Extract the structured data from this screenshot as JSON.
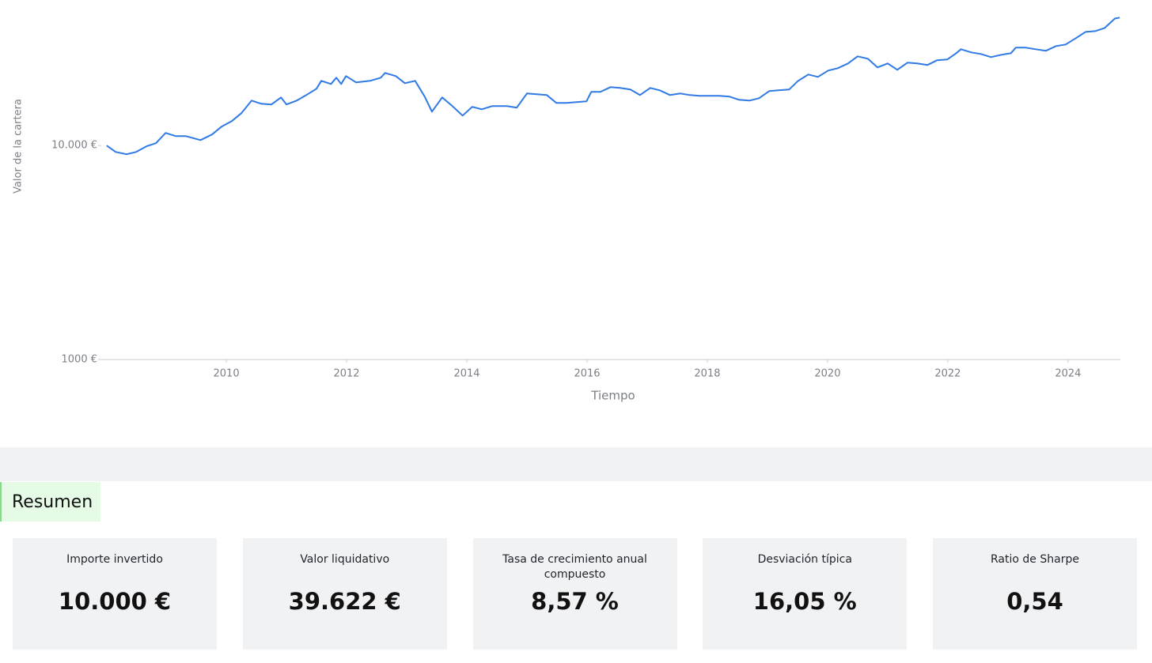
{
  "chart_data": {
    "type": "line",
    "y_label": "Valor de la cartera",
    "x_label": "Tiempo",
    "color": "#2f7ae5",
    "log_y": true,
    "xlim": [
      2007.92,
      2024.87
    ],
    "xticks": [
      2010,
      2012,
      2014,
      2016,
      2018,
      2020,
      2022,
      2024
    ],
    "ylim": [
      1000,
      44000
    ],
    "yticks": [
      {
        "value": 1000,
        "label": "1000 €"
      },
      {
        "value": 10000,
        "label": "10.000 €"
      }
    ],
    "x": [
      2008.01,
      2008.16,
      2008.34,
      2008.5,
      2008.67,
      2008.83,
      2008.99,
      2009.16,
      2009.33,
      2009.57,
      2009.76,
      2009.92,
      2010.09,
      2010.25,
      2010.42,
      2010.58,
      2010.75,
      2010.91,
      2011.0,
      2011.17,
      2011.33,
      2011.5,
      2011.58,
      2011.74,
      2011.83,
      2011.91,
      2011.99,
      2012.16,
      2012.39,
      2012.57,
      2012.64,
      2012.82,
      2012.97,
      2013.14,
      2013.3,
      2013.42,
      2013.59,
      2013.76,
      2013.93,
      2014.09,
      2014.25,
      2014.42,
      2014.67,
      2014.83,
      2015.0,
      2015.16,
      2015.33,
      2015.49,
      2015.66,
      2015.82,
      2015.99,
      2016.07,
      2016.22,
      2016.39,
      2016.55,
      2016.72,
      2016.88,
      2017.05,
      2017.21,
      2017.38,
      2017.55,
      2017.71,
      2017.87,
      2018.04,
      2018.2,
      2018.37,
      2018.53,
      2018.7,
      2018.86,
      2019.03,
      2019.18,
      2019.36,
      2019.51,
      2019.68,
      2019.84,
      2020.01,
      2020.17,
      2020.34,
      2020.5,
      2020.67,
      2020.83,
      2021.0,
      2021.16,
      2021.33,
      2021.49,
      2021.66,
      2021.82,
      2021.99,
      2022.14,
      2022.22,
      2022.39,
      2022.55,
      2022.72,
      2022.89,
      2023.05,
      2023.13,
      2023.3,
      2023.46,
      2023.63,
      2023.8,
      2023.96,
      2024.13,
      2024.29,
      2024.45,
      2024.61,
      2024.78,
      2024.86
    ],
    "values": [
      10000,
      9340,
      9110,
      9340,
      9920,
      10260,
      11460,
      11070,
      11070,
      10610,
      11260,
      12260,
      13010,
      14170,
      16230,
      15690,
      15560,
      16790,
      15560,
      16230,
      17220,
      18440,
      20070,
      19400,
      20770,
      19400,
      21120,
      19740,
      20070,
      20770,
      21850,
      21120,
      19570,
      20070,
      16930,
      14410,
      16790,
      15290,
      13810,
      15170,
      14780,
      15290,
      15290,
      15040,
      17520,
      17370,
      17220,
      15820,
      15820,
      15960,
      16090,
      17820,
      17820,
      18750,
      18590,
      18280,
      17220,
      18590,
      18130,
      17220,
      17520,
      17220,
      17080,
      17080,
      17080,
      16930,
      16370,
      16230,
      16650,
      17970,
      18130,
      18280,
      20070,
      21490,
      20940,
      22410,
      23000,
      24200,
      26120,
      25470,
      23190,
      24200,
      22610,
      24400,
      24200,
      23800,
      25040,
      25250,
      27020,
      28200,
      27260,
      26800,
      25900,
      26570,
      27020,
      28680,
      28680,
      28200,
      27730,
      29170,
      29670,
      31760,
      33990,
      34280,
      35460,
      39270,
      39620
    ]
  },
  "summary": {
    "title": "Resumen",
    "cards": [
      {
        "label": "Importe invertido",
        "value": "10.000 €"
      },
      {
        "label": "Valor liquidativo",
        "value": "39.622 €"
      },
      {
        "label": "Tasa de crecimiento anual compuesto",
        "value": "8,57 %"
      },
      {
        "label": "Desviación típica",
        "value": "16,05 %"
      },
      {
        "label": "Ratio de Sharpe",
        "value": "0,54"
      }
    ]
  }
}
